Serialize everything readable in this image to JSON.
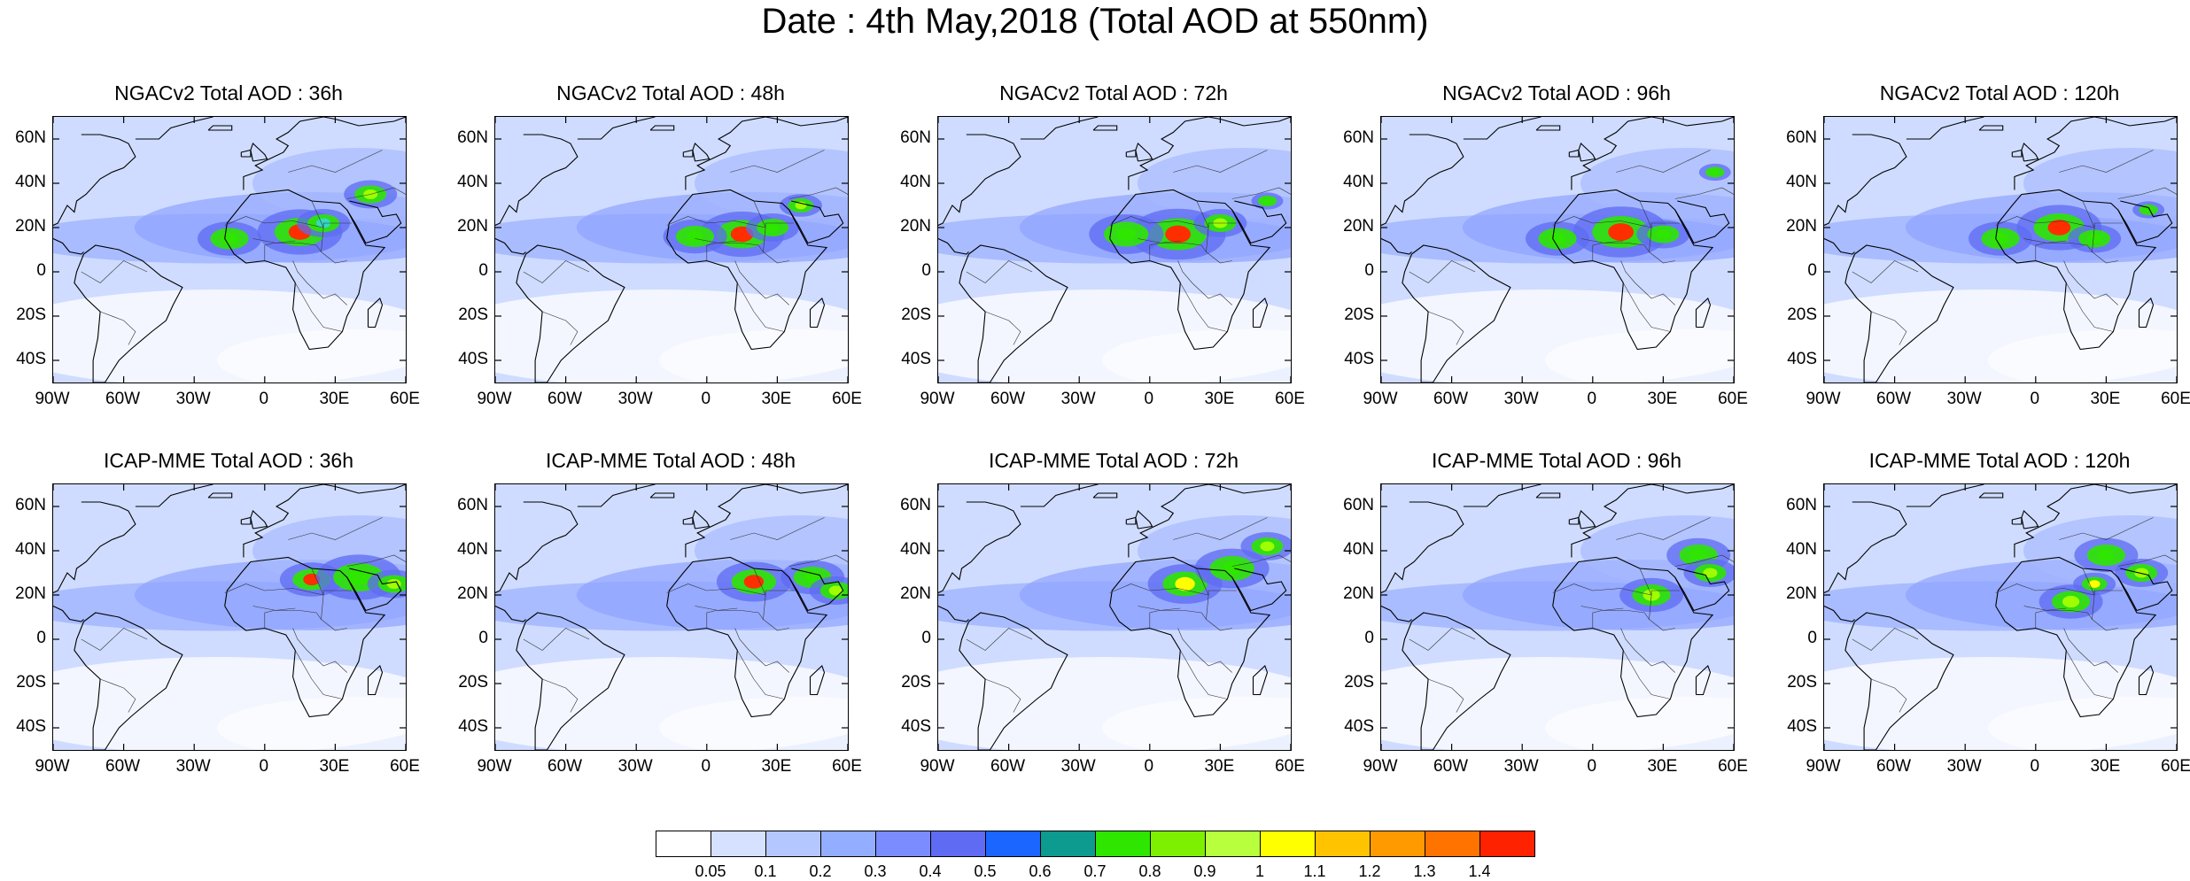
{
  "title": "Date : 4th May,2018 (Total AOD at 550nm)",
  "panels": [
    {
      "title": "NGACv2 Total AOD : 36h",
      "hotspots": [
        [
          15,
          18,
          "#ff2e00",
          8
        ],
        [
          -15,
          15,
          "#2ee600",
          6
        ],
        [
          45,
          35,
          "#9fff00",
          5
        ],
        [
          25,
          22,
          "#33d9c0",
          5
        ]
      ]
    },
    {
      "title": "NGACv2 Total AOD : 48h",
      "hotspots": [
        [
          15,
          17,
          "#ff2e00",
          8
        ],
        [
          -5,
          16,
          "#2ee600",
          6
        ],
        [
          40,
          30,
          "#9fff00",
          4
        ],
        [
          28,
          20,
          "#2ee600",
          5
        ]
      ]
    },
    {
      "title": "NGACv2 Total AOD : 72h",
      "hotspots": [
        [
          12,
          17,
          "#ff2e00",
          9
        ],
        [
          -10,
          17,
          "#2ee600",
          7
        ],
        [
          30,
          22,
          "#9fff00",
          5
        ],
        [
          50,
          32,
          "#2ee600",
          3
        ]
      ]
    },
    {
      "title": "NGACv2 Total AOD : 96h",
      "hotspots": [
        [
          12,
          18,
          "#ff2e00",
          9
        ],
        [
          -15,
          15,
          "#2ee600",
          6
        ],
        [
          30,
          17,
          "#2ee600",
          5
        ],
        [
          52,
          45,
          "#2ee600",
          3
        ]
      ]
    },
    {
      "title": "NGACv2 Total AOD : 120h",
      "hotspots": [
        [
          10,
          20,
          "#ff2e00",
          8
        ],
        [
          -15,
          15,
          "#2ee600",
          6
        ],
        [
          25,
          15,
          "#2ee600",
          5
        ],
        [
          48,
          28,
          "#2ee600",
          3
        ]
      ]
    },
    {
      "title": "ICAP-MME Total AOD : 36h",
      "hotspots": [
        [
          20,
          27,
          "#ff2e00",
          6
        ],
        [
          40,
          28,
          "#2ee600",
          8
        ],
        [
          55,
          25,
          "#9fff00",
          5
        ]
      ]
    },
    {
      "title": "ICAP-MME Total AOD : 48h",
      "hotspots": [
        [
          20,
          26,
          "#ff2e00",
          7
        ],
        [
          45,
          28,
          "#2ee600",
          6
        ],
        [
          55,
          22,
          "#9fff00",
          5
        ]
      ]
    },
    {
      "title": "ICAP-MME Total AOD : 72h",
      "hotspots": [
        [
          15,
          25,
          "#ffff00",
          7
        ],
        [
          35,
          32,
          "#2ee600",
          7
        ],
        [
          50,
          42,
          "#9fff00",
          5
        ]
      ]
    },
    {
      "title": "ICAP-MME Total AOD : 96h",
      "hotspots": [
        [
          25,
          20,
          "#9fff00",
          6
        ],
        [
          45,
          38,
          "#2ee600",
          6
        ],
        [
          50,
          30,
          "#9fff00",
          5
        ]
      ]
    },
    {
      "title": "ICAP-MME Total AOD : 120h",
      "hotspots": [
        [
          15,
          17,
          "#9fff00",
          6
        ],
        [
          30,
          38,
          "#2ee600",
          6
        ],
        [
          45,
          30,
          "#9fff00",
          5
        ],
        [
          25,
          25,
          "#ffff00",
          4
        ]
      ]
    }
  ],
  "lat_ticks": [
    "60N",
    "40N",
    "20N",
    "0",
    "20S",
    "40S"
  ],
  "lat_values": [
    60,
    40,
    20,
    0,
    -20,
    -40
  ],
  "lon_ticks": [
    "90W",
    "60W",
    "30W",
    "0",
    "30E",
    "60E"
  ],
  "lon_values": [
    -90,
    -60,
    -30,
    0,
    30,
    60
  ],
  "extent": {
    "lon": [
      -90,
      60
    ],
    "lat": [
      -50,
      70
    ]
  },
  "colorbar": {
    "colors": [
      "#ffffff",
      "#d6e0ff",
      "#b5c7ff",
      "#93adff",
      "#7a8cff",
      "#5e6bf2",
      "#1a66ff",
      "#0d9a8f",
      "#2ee600",
      "#7cf000",
      "#b8ff3d",
      "#ffff00",
      "#ffc300",
      "#ff9a00",
      "#ff7300",
      "#ff2200"
    ],
    "labels": [
      "0.05",
      "0.1",
      "0.2",
      "0.3",
      "0.4",
      "0.5",
      "0.6",
      "0.7",
      "0.8",
      "0.9",
      "1",
      "1.1",
      "1.2",
      "1.3",
      "1.4"
    ]
  }
}
